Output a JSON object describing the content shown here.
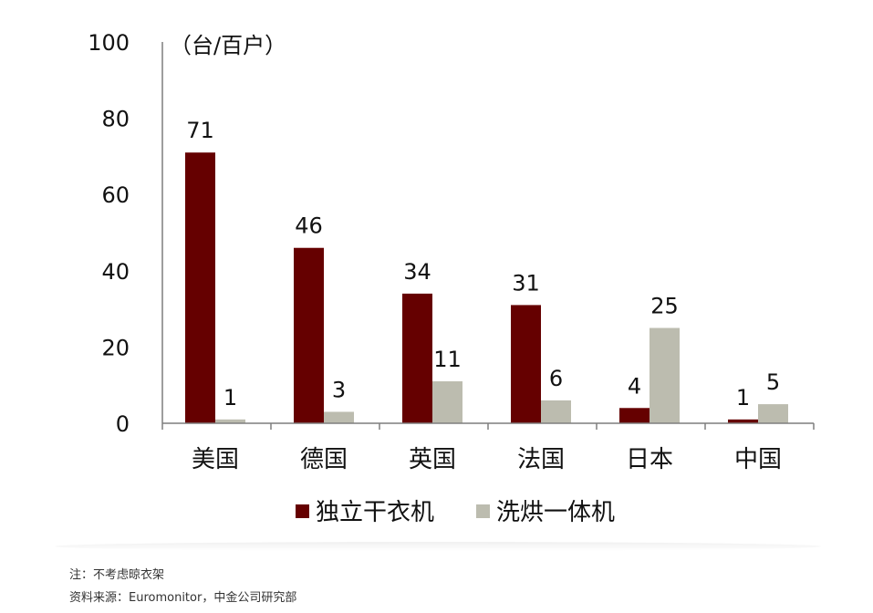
{
  "chart_data": {
    "type": "bar",
    "unit_label": "（台/百户）",
    "categories": [
      "美国",
      "德国",
      "英国",
      "法国",
      "日本",
      "中国"
    ],
    "series": [
      {
        "name": "独立干衣机",
        "values": [
          71,
          46,
          34,
          31,
          4,
          1
        ],
        "color": "#650000"
      },
      {
        "name": "洗烘一体机",
        "values": [
          1,
          3,
          11,
          6,
          25,
          5
        ],
        "color": "#bcbcaf"
      }
    ],
    "y_ticks": [
      "0",
      "20",
      "40",
      "60",
      "80",
      "100"
    ],
    "ylim": [
      0,
      100
    ],
    "grid": false,
    "legend_position": "bottom"
  },
  "footnotes": {
    "note": "注：不考虑晾衣架",
    "source": "资料来源：Euromonitor，中金公司研究部"
  }
}
